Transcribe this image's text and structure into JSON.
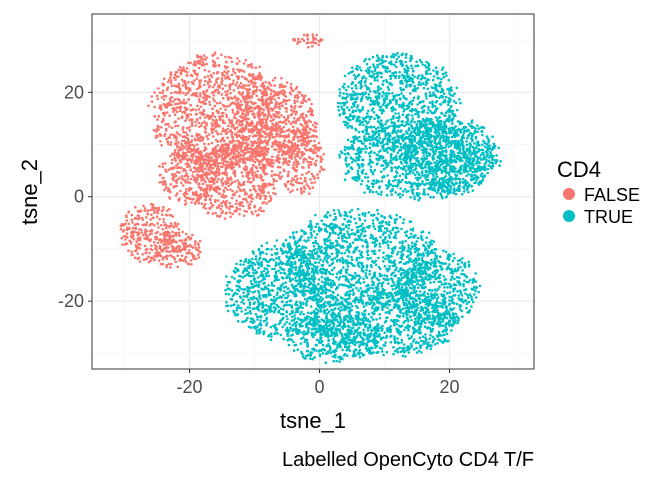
{
  "chart_data": {
    "type": "scatter",
    "title": "",
    "xlabel": "tsne_1",
    "ylabel": "tsne_2",
    "caption": "Labelled OpenCyto CD4 T/F",
    "xlim": [
      -35,
      33
    ],
    "ylim": [
      -33,
      35
    ],
    "x_ticks": [
      -20,
      0,
      20
    ],
    "y_ticks": [
      -20,
      0,
      20
    ],
    "x_tick_labels": [
      "-20",
      "0",
      "20"
    ],
    "y_tick_labels": [
      "-20",
      "0",
      "20"
    ],
    "grid": true,
    "legend": {
      "title": "CD4",
      "placement": "right",
      "entries": [
        {
          "label": "FALSE",
          "color": "#F8766D"
        },
        {
          "label": "TRUE",
          "color": "#00BFC4"
        }
      ]
    },
    "series": [
      {
        "name": "FALSE",
        "color": "#F8766D",
        "clusters": [
          {
            "cx": -16,
            "cy": 16,
            "rx": 10.5,
            "ry": 12
          },
          {
            "cx": -7,
            "cy": 14,
            "rx": 7,
            "ry": 9
          },
          {
            "cx": -13,
            "cy": 3,
            "rx": 7,
            "ry": 8
          },
          {
            "cx": -3,
            "cy": 7,
            "rx": 4,
            "ry": 7
          },
          {
            "cx": -26,
            "cy": -7,
            "rx": 5,
            "ry": 6
          },
          {
            "cx": -22,
            "cy": -10,
            "rx": 4,
            "ry": 4
          },
          {
            "cx": -20,
            "cy": 4,
            "rx": 5,
            "ry": 6
          },
          {
            "cx": -2,
            "cy": 30,
            "rx": 2.5,
            "ry": 1.5
          }
        ]
      },
      {
        "name": "TRUE",
        "color": "#00BFC4",
        "clusters": [
          {
            "cx": 12,
            "cy": 18,
            "rx": 10,
            "ry": 10
          },
          {
            "cx": 15,
            "cy": 7,
            "rx": 13,
            "ry": 8
          },
          {
            "cx": 20,
            "cy": 8,
            "rx": 8,
            "ry": 8
          },
          {
            "cx": 6,
            "cy": -12,
            "rx": 13,
            "ry": 10
          },
          {
            "cx": -6,
            "cy": -18,
            "rx": 9,
            "ry": 10
          },
          {
            "cx": 10,
            "cy": -24,
            "rx": 12,
            "ry": 7
          },
          {
            "cx": 18,
            "cy": -18,
            "rx": 7,
            "ry": 8
          },
          {
            "cx": 2,
            "cy": -27,
            "rx": 8,
            "ry": 5
          }
        ]
      }
    ]
  }
}
